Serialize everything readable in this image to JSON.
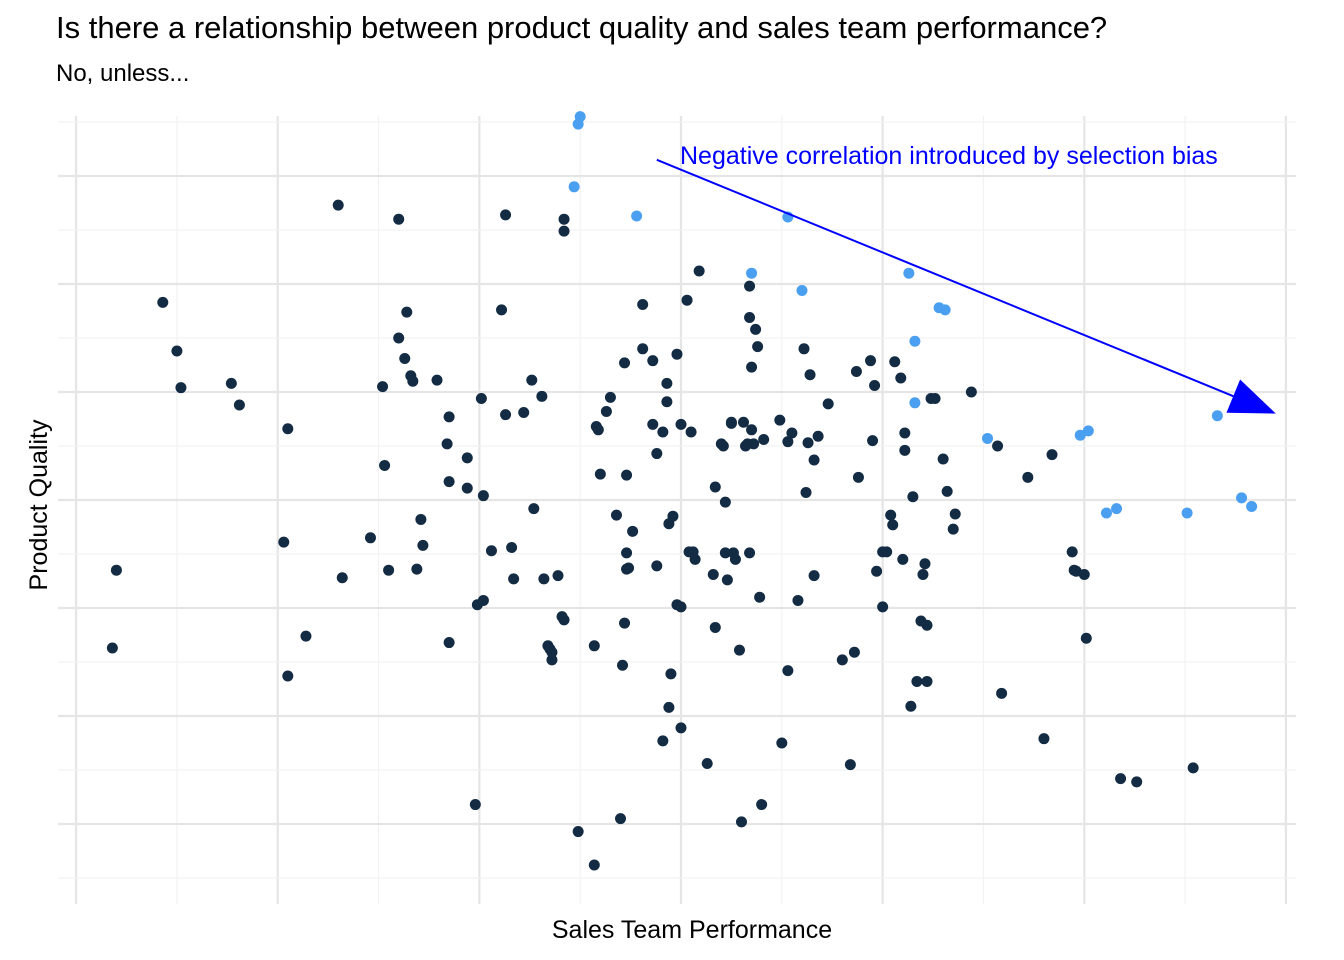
{
  "chart_data": {
    "type": "scatter",
    "title": "Is there a relationship between product quality and sales team performance?",
    "subtitle": "No, unless...",
    "xlabel": "Sales Team Performance",
    "ylabel": "Product Quality",
    "xlim": [
      -3.05,
      3.05
    ],
    "ylim": [
      -3.5,
      3.5
    ],
    "grid": true,
    "x_ticks_shown": false,
    "y_ticks_shown": false,
    "colors": {
      "unselected": "#132B43",
      "selected": "#4A9FF0",
      "annotation": "#0000FF",
      "grid_major": "#E5E5E5",
      "grid_minor": "#F2F2F2"
    },
    "annotation": {
      "text": "Negative correlation introduced by selection bias",
      "arrow_from": [
        -0.12,
        3.15
      ],
      "arrow_to": [
        2.95,
        0.8
      ]
    },
    "selected_points": [
      {
        "x": -0.5,
        "y": 3.55
      },
      {
        "x": -0.51,
        "y": 3.48
      },
      {
        "x": -0.53,
        "y": 2.9
      },
      {
        "x": -0.22,
        "y": 2.63
      },
      {
        "x": 0.53,
        "y": 2.62
      },
      {
        "x": 0.35,
        "y": 2.1
      },
      {
        "x": 0.6,
        "y": 1.94
      },
      {
        "x": 1.13,
        "y": 2.1
      },
      {
        "x": 1.31,
        "y": 1.76
      },
      {
        "x": 1.28,
        "y": 1.78
      },
      {
        "x": 1.16,
        "y": 1.47
      },
      {
        "x": 1.16,
        "y": 0.9
      },
      {
        "x": 1.52,
        "y": 0.57
      },
      {
        "x": 1.98,
        "y": 0.6
      },
      {
        "x": 2.02,
        "y": 0.64
      },
      {
        "x": 2.66,
        "y": 0.78
      },
      {
        "x": 2.11,
        "y": -0.12
      },
      {
        "x": 2.16,
        "y": -0.08
      },
      {
        "x": 2.51,
        "y": -0.12
      },
      {
        "x": 2.78,
        "y": 0.02
      },
      {
        "x": 2.83,
        "y": -0.06
      }
    ],
    "unselected_points": [
      {
        "x": -2.8,
        "y": -0.65
      },
      {
        "x": -2.82,
        "y": -1.37
      },
      {
        "x": -2.57,
        "y": 1.83
      },
      {
        "x": -2.5,
        "y": 1.38
      },
      {
        "x": -2.48,
        "y": 1.04
      },
      {
        "x": -2.23,
        "y": 1.08
      },
      {
        "x": -2.19,
        "y": 0.88
      },
      {
        "x": -1.95,
        "y": 0.66
      },
      {
        "x": -1.97,
        "y": -0.39
      },
      {
        "x": -1.95,
        "y": -1.63
      },
      {
        "x": -1.86,
        "y": -1.26
      },
      {
        "x": -1.7,
        "y": 2.73
      },
      {
        "x": -1.4,
        "y": 2.6
      },
      {
        "x": -1.68,
        "y": -0.72
      },
      {
        "x": -1.54,
        "y": -0.35
      },
      {
        "x": -1.48,
        "y": 1.05
      },
      {
        "x": -1.47,
        "y": 0.32
      },
      {
        "x": -1.45,
        "y": -0.65
      },
      {
        "x": -1.4,
        "y": 1.5
      },
      {
        "x": -1.37,
        "y": 1.31
      },
      {
        "x": -1.36,
        "y": 1.74
      },
      {
        "x": -1.34,
        "y": 1.15
      },
      {
        "x": -1.33,
        "y": 1.1
      },
      {
        "x": -1.31,
        "y": -0.64
      },
      {
        "x": -1.29,
        "y": -0.18
      },
      {
        "x": -1.28,
        "y": -0.42
      },
      {
        "x": -1.21,
        "y": 1.11
      },
      {
        "x": -1.15,
        "y": 0.77
      },
      {
        "x": -1.16,
        "y": 0.52
      },
      {
        "x": -1.15,
        "y": 0.17
      },
      {
        "x": -1.15,
        "y": -1.32
      },
      {
        "x": -1.06,
        "y": 0.39
      },
      {
        "x": -1.06,
        "y": 0.11
      },
      {
        "x": -1.02,
        "y": -2.82
      },
      {
        "x": -1.01,
        "y": -0.97
      },
      {
        "x": -0.99,
        "y": 0.94
      },
      {
        "x": -0.98,
        "y": 0.04
      },
      {
        "x": -0.98,
        "y": -0.93
      },
      {
        "x": -0.94,
        "y": -0.47
      },
      {
        "x": -0.89,
        "y": 1.76
      },
      {
        "x": -0.87,
        "y": 2.64
      },
      {
        "x": -0.87,
        "y": 0.79
      },
      {
        "x": -0.84,
        "y": -0.44
      },
      {
        "x": -0.83,
        "y": -0.73
      },
      {
        "x": -0.78,
        "y": 0.81
      },
      {
        "x": -0.74,
        "y": 1.11
      },
      {
        "x": -0.73,
        "y": -0.08
      },
      {
        "x": -0.69,
        "y": 0.96
      },
      {
        "x": -0.68,
        "y": -0.73
      },
      {
        "x": -0.66,
        "y": -1.35
      },
      {
        "x": -0.65,
        "y": -1.38
      },
      {
        "x": -0.64,
        "y": -1.48
      },
      {
        "x": -0.64,
        "y": -1.41
      },
      {
        "x": -0.61,
        "y": -0.7
      },
      {
        "x": -0.59,
        "y": -1.08
      },
      {
        "x": -0.58,
        "y": -1.11
      },
      {
        "x": -0.58,
        "y": 2.49
      },
      {
        "x": -0.58,
        "y": 2.6
      },
      {
        "x": -0.51,
        "y": -3.07
      },
      {
        "x": -0.43,
        "y": -3.38
      },
      {
        "x": -0.43,
        "y": -1.35
      },
      {
        "x": -0.42,
        "y": 0.68
      },
      {
        "x": -0.41,
        "y": 0.65
      },
      {
        "x": -0.4,
        "y": 0.24
      },
      {
        "x": -0.37,
        "y": 0.82
      },
      {
        "x": -0.35,
        "y": 0.95
      },
      {
        "x": -0.32,
        "y": -0.14
      },
      {
        "x": -0.3,
        "y": -2.95
      },
      {
        "x": -0.29,
        "y": -1.53
      },
      {
        "x": -0.28,
        "y": 1.27
      },
      {
        "x": -0.28,
        "y": -1.14
      },
      {
        "x": -0.27,
        "y": -0.49
      },
      {
        "x": -0.27,
        "y": -0.64
      },
      {
        "x": -0.27,
        "y": 0.23
      },
      {
        "x": -0.26,
        "y": -0.63
      },
      {
        "x": -0.24,
        "y": -0.29
      },
      {
        "x": -0.19,
        "y": 1.81
      },
      {
        "x": -0.19,
        "y": 1.4
      },
      {
        "x": -0.14,
        "y": 1.29
      },
      {
        "x": -0.14,
        "y": 0.7
      },
      {
        "x": -0.12,
        "y": 0.43
      },
      {
        "x": -0.12,
        "y": -0.61
      },
      {
        "x": -0.09,
        "y": -2.23
      },
      {
        "x": -0.09,
        "y": 0.63
      },
      {
        "x": -0.07,
        "y": 1.08
      },
      {
        "x": -0.07,
        "y": 0.91
      },
      {
        "x": -0.06,
        "y": -0.22
      },
      {
        "x": -0.06,
        "y": -1.92
      },
      {
        "x": -0.05,
        "y": -1.61
      },
      {
        "x": -0.04,
        "y": -0.15
      },
      {
        "x": -0.02,
        "y": 1.35
      },
      {
        "x": -0.02,
        "y": -0.97
      },
      {
        "x": 0.0,
        "y": -0.99
      },
      {
        "x": 0.0,
        "y": -2.11
      },
      {
        "x": 0.0,
        "y": 0.7
      },
      {
        "x": 0.03,
        "y": 1.85
      },
      {
        "x": 0.04,
        "y": -0.48
      },
      {
        "x": 0.05,
        "y": 0.63
      },
      {
        "x": 0.06,
        "y": -0.48
      },
      {
        "x": 0.07,
        "y": -0.55
      },
      {
        "x": 0.09,
        "y": 2.12
      },
      {
        "x": 0.13,
        "y": -2.44
      },
      {
        "x": 0.16,
        "y": -0.69
      },
      {
        "x": 0.17,
        "y": 0.12
      },
      {
        "x": 0.17,
        "y": -1.18
      },
      {
        "x": 0.2,
        "y": 0.52
      },
      {
        "x": 0.21,
        "y": 0.5
      },
      {
        "x": 0.22,
        "y": -0.02
      },
      {
        "x": 0.22,
        "y": -0.49
      },
      {
        "x": 0.23,
        "y": -0.74
      },
      {
        "x": 0.25,
        "y": 0.71
      },
      {
        "x": 0.25,
        "y": 0.72
      },
      {
        "x": 0.26,
        "y": -0.49
      },
      {
        "x": 0.27,
        "y": -0.55
      },
      {
        "x": 0.29,
        "y": -1.39
      },
      {
        "x": 0.3,
        "y": -2.98
      },
      {
        "x": 0.31,
        "y": 0.72
      },
      {
        "x": 0.32,
        "y": 0.5
      },
      {
        "x": 0.33,
        "y": 0.52
      },
      {
        "x": 0.34,
        "y": -0.49
      },
      {
        "x": 0.34,
        "y": 1.69
      },
      {
        "x": 0.34,
        "y": 1.98
      },
      {
        "x": 0.35,
        "y": 1.23
      },
      {
        "x": 0.35,
        "y": 0.65
      },
      {
        "x": 0.36,
        "y": 0.52
      },
      {
        "x": 0.37,
        "y": 1.58
      },
      {
        "x": 0.38,
        "y": 1.42
      },
      {
        "x": 0.39,
        "y": -0.9
      },
      {
        "x": 0.4,
        "y": -2.82
      },
      {
        "x": 0.41,
        "y": 0.56
      },
      {
        "x": 0.49,
        "y": 0.74
      },
      {
        "x": 0.5,
        "y": -2.25
      },
      {
        "x": 0.53,
        "y": 0.54
      },
      {
        "x": 0.53,
        "y": -1.58
      },
      {
        "x": 0.55,
        "y": 0.62
      },
      {
        "x": 0.58,
        "y": -0.93
      },
      {
        "x": 0.61,
        "y": 1.4
      },
      {
        "x": 0.62,
        "y": 0.07
      },
      {
        "x": 0.63,
        "y": 0.53
      },
      {
        "x": 0.64,
        "y": 1.16
      },
      {
        "x": 0.66,
        "y": 0.37
      },
      {
        "x": 0.66,
        "y": -0.7
      },
      {
        "x": 0.68,
        "y": 0.59
      },
      {
        "x": 0.73,
        "y": 0.89
      },
      {
        "x": 0.8,
        "y": -1.48
      },
      {
        "x": 0.84,
        "y": -2.45
      },
      {
        "x": 0.86,
        "y": -1.41
      },
      {
        "x": 0.87,
        "y": 1.19
      },
      {
        "x": 0.88,
        "y": 0.21
      },
      {
        "x": 0.94,
        "y": 1.29
      },
      {
        "x": 0.95,
        "y": 0.55
      },
      {
        "x": 0.96,
        "y": 1.06
      },
      {
        "x": 0.97,
        "y": -0.66
      },
      {
        "x": 1.0,
        "y": -0.99
      },
      {
        "x": 1.0,
        "y": -0.48
      },
      {
        "x": 1.02,
        "y": -0.48
      },
      {
        "x": 1.04,
        "y": -0.14
      },
      {
        "x": 1.05,
        "y": -0.23
      },
      {
        "x": 1.06,
        "y": 1.28
      },
      {
        "x": 1.09,
        "y": 1.13
      },
      {
        "x": 1.11,
        "y": 0.46
      },
      {
        "x": 1.11,
        "y": 0.62
      },
      {
        "x": 1.15,
        "y": 0.03
      },
      {
        "x": 1.17,
        "y": -1.68
      },
      {
        "x": 1.19,
        "y": -1.12
      },
      {
        "x": 1.2,
        "y": -0.69
      },
      {
        "x": 1.21,
        "y": -0.59
      },
      {
        "x": 1.22,
        "y": -1.16
      },
      {
        "x": 1.22,
        "y": -1.68
      },
      {
        "x": 1.24,
        "y": 0.94
      },
      {
        "x": 1.26,
        "y": 0.94
      },
      {
        "x": 1.3,
        "y": 0.38
      },
      {
        "x": 1.32,
        "y": 0.08
      },
      {
        "x": 1.35,
        "y": -0.27
      },
      {
        "x": 1.36,
        "y": -0.13
      },
      {
        "x": 1.44,
        "y": 1.0
      },
      {
        "x": 1.57,
        "y": 0.5
      },
      {
        "x": 1.59,
        "y": -1.79
      },
      {
        "x": 1.72,
        "y": 0.21
      },
      {
        "x": 1.8,
        "y": -2.21
      },
      {
        "x": 1.84,
        "y": 0.42
      },
      {
        "x": 1.94,
        "y": -0.48
      },
      {
        "x": 1.95,
        "y": -0.65
      },
      {
        "x": 1.96,
        "y": -0.66
      },
      {
        "x": 2.0,
        "y": -0.69
      },
      {
        "x": 2.01,
        "y": -1.28
      },
      {
        "x": 2.18,
        "y": -2.58
      },
      {
        "x": 2.26,
        "y": -2.61
      },
      {
        "x": 2.54,
        "y": -2.48
      },
      {
        "x": 1.1,
        "y": -0.55
      },
      {
        "x": 1.14,
        "y": -1.91
      }
    ]
  }
}
